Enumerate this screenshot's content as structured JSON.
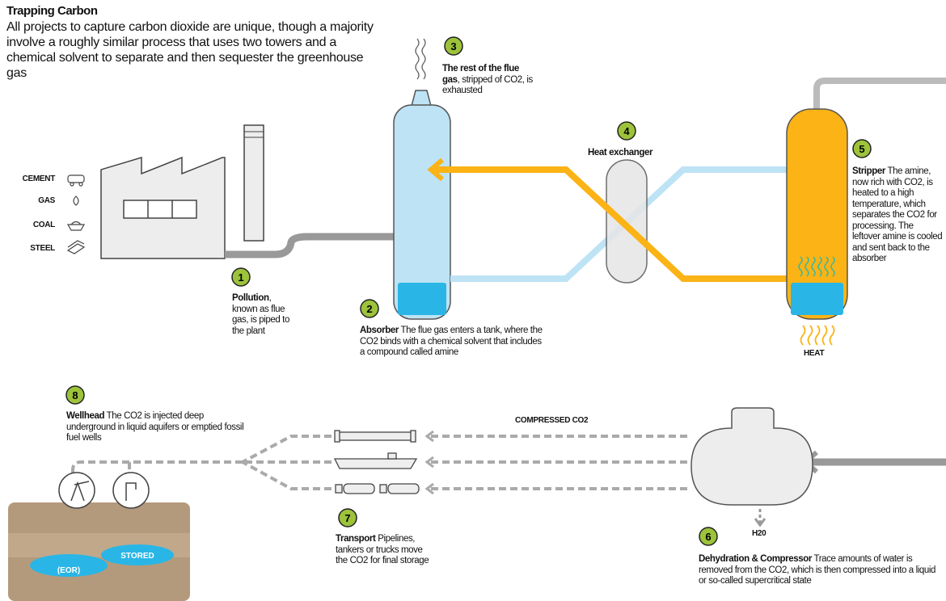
{
  "title": "Trapping Carbon",
  "intro": "All projects to capture carbon dioxide are unique, though a majority involve a roughly similar process that uses two towers and a chemical solvent to separate and then sequester the greenhouse gas",
  "industries": [
    "CEMENT",
    "GAS",
    "COAL",
    "STEEL"
  ],
  "steps": [
    {
      "number": "1",
      "heading": "Pollution",
      "body": ", known as flue gas, is piped to the plant"
    },
    {
      "number": "2",
      "heading": "Absorber",
      "body": " The flue gas enters a tank, where the CO2 binds with a chemical solvent that includes a compound called amine"
    },
    {
      "number": "3",
      "heading": "The rest of the flue gas",
      "body": ", stripped of CO2, is exhausted"
    },
    {
      "number": "4",
      "heading": "Heat exchanger"
    },
    {
      "number": "5",
      "heading": "Stripper",
      "body": " The amine, now rich with CO2, is heated to a high temperature, which separates the CO2 for processing. The leftover amine is cooled and sent back to the absorber"
    },
    {
      "number": "6",
      "heading": "Dehydration & Compressor",
      "body": " Trace amounts of water is removed from the CO2, which is then compressed into a liquid or so-called supercritical state"
    },
    {
      "number": "7",
      "heading": "Transport",
      "body": " Pipelines, tankers or trucks move the CO2 for final storage"
    },
    {
      "number": "8",
      "heading": "Wellhead",
      "body": " The CO2 is injected deep underground in liquid aquifers or emptied fossil fuel wells"
    }
  ],
  "labels": {
    "compressed": "COMPRESSED CO2",
    "heat": "HEAT",
    "water": "H20",
    "eor": "(EOR)",
    "stored": "STORED"
  }
}
